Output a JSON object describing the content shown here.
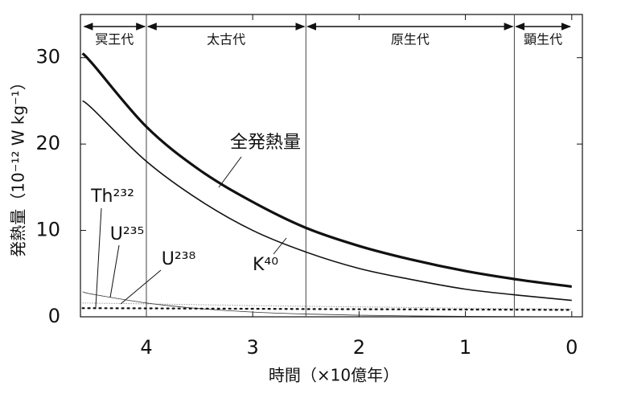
{
  "chart_data": {
    "type": "line",
    "xlabel": "時間（×10億年）",
    "ylabel": "発熱量（10⁻¹² W kg⁻¹）",
    "x": [
      4.6,
      4.5,
      4,
      3.5,
      3,
      2.5,
      2,
      1.5,
      1,
      0.5,
      0
    ],
    "series": [
      {
        "name": "全発熱量",
        "color": "#111111",
        "style": "thick",
        "values": [
          30.5,
          29.2,
          22,
          17,
          13.3,
          10.3,
          8.2,
          6.6,
          5.3,
          4.3,
          3.5
        ]
      },
      {
        "name": "K⁴⁰",
        "color": "#111111",
        "style": "solid",
        "values": [
          25,
          24,
          18,
          13.5,
          10,
          7.5,
          5.6,
          4.3,
          3.2,
          2.5,
          1.9
        ]
      },
      {
        "name": "U²³⁵",
        "color": "#333333",
        "style": "thin",
        "values": [
          2.9,
          2.6,
          1.6,
          0.95,
          0.55,
          0.32,
          0.18,
          0.1,
          0.06,
          0.03,
          0.02
        ]
      },
      {
        "name": "U²³⁸",
        "color": "#666666",
        "style": "lightdot",
        "values": [
          1.6,
          1.58,
          1.5,
          1.4,
          1.3,
          1.22,
          1.15,
          1.08,
          1.0,
          0.95,
          0.9
        ]
      },
      {
        "name": "Th²³²",
        "color": "#111111",
        "style": "dot",
        "values": [
          1.0,
          1.0,
          0.98,
          0.95,
          0.93,
          0.9,
          0.88,
          0.86,
          0.84,
          0.82,
          0.8
        ]
      }
    ],
    "eras": [
      {
        "name": "冥王代",
        "start": 4.6,
        "end": 4.0
      },
      {
        "name": "太古代",
        "start": 4.0,
        "end": 2.5
      },
      {
        "name": "原生代",
        "start": 2.5,
        "end": 0.54
      },
      {
        "name": "顕生代",
        "start": 0.54,
        "end": 0
      }
    ],
    "xlim": [
      4.62,
      -0.1
    ],
    "ylim": [
      0,
      35
    ],
    "xticks": [
      4,
      3,
      2,
      1,
      0
    ],
    "yticks": [
      0,
      10,
      20,
      30
    ]
  }
}
